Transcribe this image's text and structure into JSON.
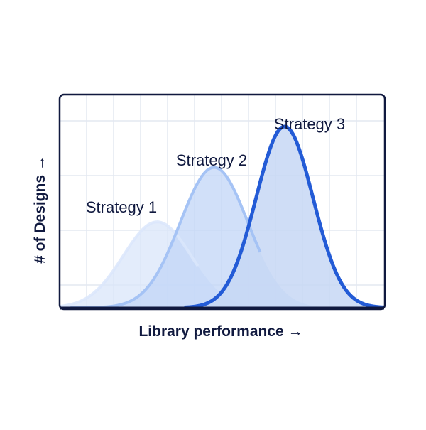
{
  "chart_data": {
    "type": "area",
    "title": "",
    "xlabel": "Library performance →",
    "ylabel": "# of Designs →",
    "xlim": [
      0,
      12
    ],
    "ylim": [
      0,
      3.6
    ],
    "grid": true,
    "series": [
      {
        "name": "Strategy 1",
        "mean": 3.6,
        "sd": 1.25,
        "peak": 1.45,
        "x_range": [
          0,
          5.1
        ],
        "fill": "#d9e5fa",
        "stroke": "#dbe6fb",
        "stroke_opacity": 0.85
      },
      {
        "name": "Strategy 2",
        "mean": 5.7,
        "sd": 1.25,
        "peak": 2.37,
        "x_range": [
          0.4,
          7.4
        ],
        "fill": "#c2d6f7",
        "stroke": "#a5c3f5",
        "stroke_opacity": 1
      },
      {
        "name": "Strategy 3",
        "mean": 8.3,
        "sd": 1.05,
        "peak": 3.06,
        "x_range": [
          4.6,
          12.0
        ],
        "fill": "#c7d7f5",
        "stroke": "#235bd6",
        "stroke_opacity": 1
      }
    ],
    "frame_color": "#10193f",
    "grid_color": "#e3e8f1"
  }
}
